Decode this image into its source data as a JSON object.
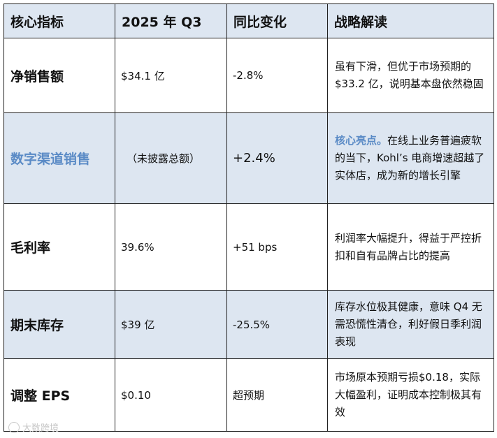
{
  "headers": [
    "核心指标",
    "2025 年 Q3",
    "同比变化",
    "战略解读"
  ],
  "rows": [
    {
      "metric": "净销售额",
      "value": "$34.1 亿",
      "change": "-2.8%",
      "note_lead": "",
      "note": "虽有下滑，但优于市场预期的$33.2 亿，说明基本盘依然稳固"
    },
    {
      "metric": "数字渠道销售",
      "value": "（未披露总额）",
      "change": "+2.4%",
      "note_lead": "核心亮点。",
      "note": "在线上业务普遍疲软的当下，Kohl’s 电商增速超越了实体店，成为新的增长引擎"
    },
    {
      "metric": "毛利率",
      "value": "39.6%",
      "change": "+51 bps",
      "note_lead": "",
      "note": "利润率大幅提升，得益于严控折扣和自有品牌占比的提高"
    },
    {
      "metric": "期末库存",
      "value": "$39 亿",
      "change": "-25.5%",
      "note_lead": "",
      "note": "库存水位极其健康，意味 Q4 无需恐慌性清仓，利好假日季利润表现"
    },
    {
      "metric": "调整 EPS",
      "value": "$0.10",
      "change": "超预期",
      "note_lead": "",
      "note": "市场原本预期亏损$0.18，实际大幅盈利，证明成本控制极其有效"
    }
  ],
  "watermark": "大数跨境"
}
